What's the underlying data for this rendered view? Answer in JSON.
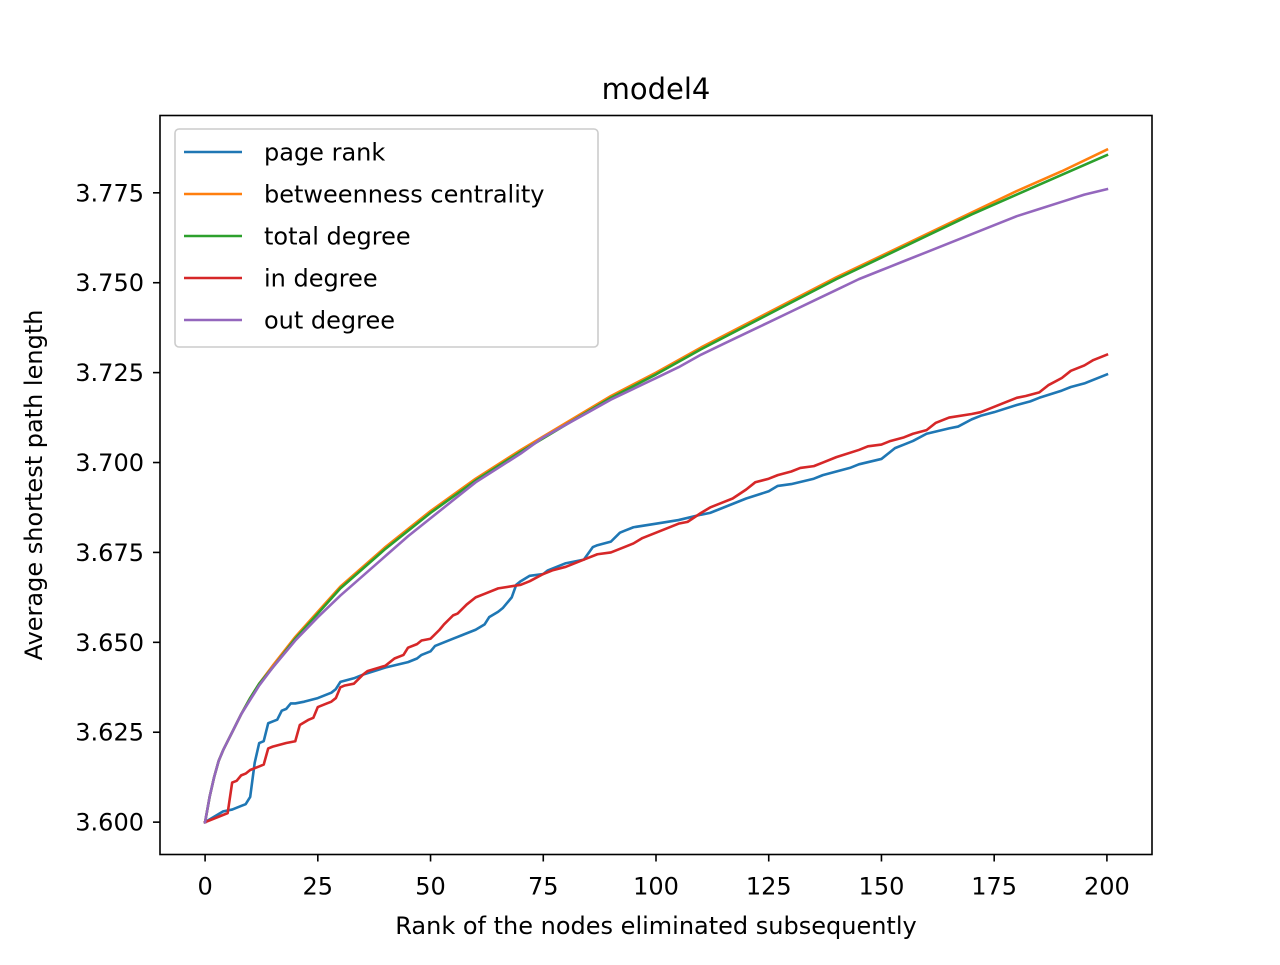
{
  "chart_data": {
    "type": "line",
    "title": "model4",
    "xlabel": "Rank of the nodes eliminated subsequently",
    "ylabel": "Average shortest path length",
    "xlim": [
      -10,
      210
    ],
    "ylim": [
      3.591,
      3.7965
    ],
    "xticks": [
      0,
      25,
      50,
      75,
      100,
      125,
      150,
      175,
      200
    ],
    "yticks": [
      3.6,
      3.625,
      3.65,
      3.675,
      3.7,
      3.725,
      3.75,
      3.775
    ],
    "xtick_labels": [
      "0",
      "25",
      "50",
      "75",
      "100",
      "125",
      "150",
      "175",
      "200"
    ],
    "ytick_labels": [
      "3.600",
      "3.625",
      "3.650",
      "3.675",
      "3.700",
      "3.725",
      "3.750",
      "3.775"
    ],
    "grid": false,
    "legend_position": "upper left",
    "series": [
      {
        "name": "page rank",
        "color": "#1f77b4",
        "x": [
          0,
          2,
          4,
          6,
          8,
          9,
          10,
          11,
          12,
          13,
          14,
          15,
          16,
          17,
          18,
          19,
          20,
          22,
          25,
          28,
          29,
          30,
          33,
          35,
          40,
          45,
          47,
          48,
          50,
          51,
          55,
          57,
          60,
          62,
          63,
          65,
          66,
          68,
          69,
          70,
          72,
          75,
          76,
          78,
          80,
          84,
          86,
          87,
          90,
          92,
          93,
          95,
          100,
          105,
          110,
          112,
          115,
          120,
          125,
          127,
          130,
          135,
          137,
          140,
          143,
          145,
          150,
          152,
          153,
          155,
          157,
          160,
          165,
          167,
          170,
          172,
          175,
          180,
          183,
          185,
          190,
          192,
          195,
          200
        ],
        "y": [
          3.6,
          3.6015,
          3.603,
          3.6035,
          3.6045,
          3.605,
          3.607,
          3.6165,
          3.622,
          3.6225,
          3.6275,
          3.628,
          3.6285,
          3.631,
          3.6315,
          3.633,
          3.633,
          3.6335,
          3.6345,
          3.636,
          3.637,
          3.639,
          3.64,
          3.641,
          3.643,
          3.6445,
          3.6455,
          3.6465,
          3.6475,
          3.649,
          3.651,
          3.652,
          3.6535,
          3.655,
          3.657,
          3.6585,
          3.6595,
          3.6625,
          3.666,
          3.667,
          3.6685,
          3.669,
          3.67,
          3.671,
          3.672,
          3.673,
          3.6765,
          3.677,
          3.678,
          3.6805,
          3.681,
          3.682,
          3.683,
          3.684,
          3.6855,
          3.686,
          3.6875,
          3.69,
          3.692,
          3.6935,
          3.694,
          3.6955,
          3.6965,
          3.6975,
          3.6985,
          3.6995,
          3.701,
          3.703,
          3.704,
          3.705,
          3.706,
          3.708,
          3.7095,
          3.71,
          3.712,
          3.713,
          3.714,
          3.716,
          3.717,
          3.718,
          3.72,
          3.721,
          3.722,
          3.7245
        ]
      },
      {
        "name": "betweenness centrality",
        "color": "#ff7f0e",
        "x": [
          0,
          1,
          2,
          3,
          4,
          5,
          6,
          7,
          8,
          10,
          12,
          15,
          20,
          25,
          30,
          40,
          50,
          60,
          70,
          80,
          90,
          100,
          110,
          120,
          130,
          140,
          150,
          160,
          170,
          180,
          190,
          200
        ],
        "y": [
          3.6,
          3.607,
          3.6125,
          3.617,
          3.62,
          3.6225,
          3.625,
          3.6275,
          3.63,
          3.6345,
          3.6385,
          3.6435,
          3.6515,
          3.6585,
          3.6655,
          3.6765,
          3.6865,
          3.6955,
          3.7035,
          3.711,
          3.7185,
          3.725,
          3.732,
          3.7385,
          3.745,
          3.7515,
          3.7575,
          3.7635,
          3.7695,
          3.7755,
          3.781,
          3.787
        ]
      },
      {
        "name": "total degree",
        "color": "#2ca02c",
        "x": [
          0,
          1,
          2,
          3,
          4,
          5,
          6,
          7,
          8,
          10,
          12,
          15,
          20,
          25,
          30,
          40,
          50,
          60,
          70,
          80,
          90,
          100,
          110,
          120,
          130,
          140,
          150,
          160,
          170,
          180,
          190,
          200
        ],
        "y": [
          3.6,
          3.607,
          3.6125,
          3.617,
          3.62,
          3.6225,
          3.625,
          3.6275,
          3.63,
          3.6345,
          3.6385,
          3.643,
          3.651,
          3.658,
          3.665,
          3.676,
          3.686,
          3.695,
          3.703,
          3.7105,
          3.718,
          3.7245,
          3.7315,
          3.738,
          3.7445,
          3.751,
          3.757,
          3.763,
          3.769,
          3.7745,
          3.78,
          3.7855
        ]
      },
      {
        "name": "in degree",
        "color": "#d62728",
        "x": [
          0,
          3,
          5,
          6,
          7,
          8,
          9,
          10,
          11,
          12,
          13,
          14,
          15,
          18,
          20,
          21,
          23,
          24,
          25,
          27,
          28,
          29,
          30,
          31,
          33,
          35,
          36,
          40,
          42,
          44,
          45,
          47,
          48,
          50,
          52,
          53,
          55,
          56,
          58,
          60,
          62,
          65,
          70,
          72,
          75,
          77,
          80,
          85,
          87,
          90,
          93,
          95,
          97,
          100,
          105,
          107,
          110,
          112,
          115,
          117,
          120,
          122,
          125,
          127,
          130,
          132,
          135,
          137,
          140,
          145,
          147,
          150,
          152,
          155,
          157,
          160,
          162,
          165,
          170,
          172,
          175,
          177,
          180,
          182,
          185,
          187,
          190,
          192,
          195,
          197,
          200
        ],
        "y": [
          3.6,
          3.6015,
          3.6025,
          3.611,
          3.6115,
          3.613,
          3.6135,
          3.6145,
          3.615,
          3.6155,
          3.616,
          3.6205,
          3.621,
          3.622,
          3.6225,
          3.627,
          3.6285,
          3.629,
          3.632,
          3.633,
          3.6335,
          3.6345,
          3.6375,
          3.638,
          3.6385,
          3.641,
          3.642,
          3.6435,
          3.6455,
          3.6465,
          3.6485,
          3.6495,
          3.6505,
          3.651,
          3.6535,
          3.655,
          3.6575,
          3.658,
          3.6605,
          3.6625,
          3.6635,
          3.665,
          3.666,
          3.667,
          3.669,
          3.67,
          3.671,
          3.6735,
          3.6745,
          3.675,
          3.6765,
          3.6775,
          3.679,
          3.6805,
          3.683,
          3.6835,
          3.686,
          3.6875,
          3.689,
          3.69,
          3.6925,
          3.6945,
          3.6955,
          3.6965,
          3.6975,
          3.6985,
          3.699,
          3.7,
          3.7015,
          3.7035,
          3.7045,
          3.705,
          3.706,
          3.707,
          3.708,
          3.709,
          3.711,
          3.7125,
          3.7135,
          3.714,
          3.7155,
          3.7165,
          3.718,
          3.7185,
          3.7195,
          3.7215,
          3.7235,
          3.7255,
          3.727,
          3.7285,
          3.73
        ]
      },
      {
        "name": "out degree",
        "color": "#9467bd",
        "x": [
          0,
          1,
          2,
          3,
          4,
          5,
          6,
          7,
          8,
          10,
          12,
          15,
          20,
          25,
          30,
          35,
          40,
          45,
          50,
          55,
          58,
          60,
          65,
          70,
          75,
          80,
          85,
          90,
          95,
          100,
          105,
          110,
          115,
          120,
          125,
          130,
          135,
          140,
          145,
          150,
          155,
          160,
          165,
          170,
          175,
          180,
          185,
          190,
          195,
          200
        ],
        "y": [
          3.6,
          3.607,
          3.6125,
          3.617,
          3.62,
          3.6225,
          3.625,
          3.6275,
          3.63,
          3.634,
          3.638,
          3.643,
          3.6505,
          3.657,
          3.663,
          3.6685,
          3.674,
          3.6795,
          3.6845,
          3.6895,
          3.6925,
          3.6945,
          3.6985,
          3.7025,
          3.707,
          3.7105,
          3.714,
          3.7175,
          3.7205,
          3.7235,
          3.7265,
          3.73,
          3.733,
          3.736,
          3.739,
          3.742,
          3.745,
          3.748,
          3.751,
          3.7535,
          3.756,
          3.7585,
          3.761,
          3.7635,
          3.766,
          3.7685,
          3.7705,
          3.7725,
          3.7745,
          3.776
        ]
      }
    ]
  }
}
